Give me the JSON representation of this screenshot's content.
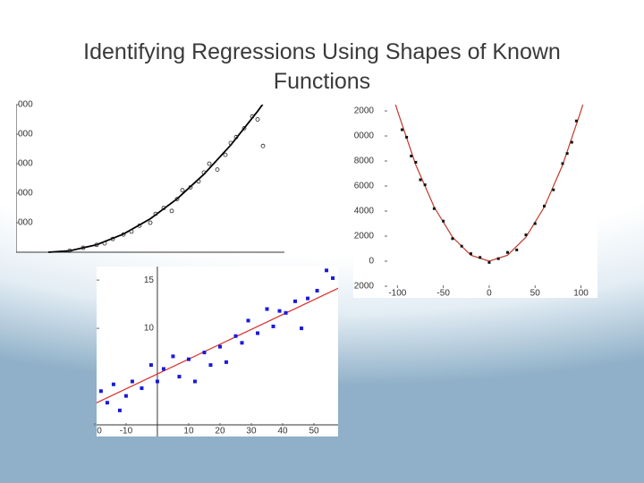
{
  "title": "Identifying Regressions Using Shapes of Known Functions",
  "chart_data": [
    {
      "type": "scatter",
      "marker": "circle-open",
      "color": "#222222",
      "fit_color": "#000000",
      "zero_axes": true,
      "xlim": [
        0,
        10
      ],
      "ylim": [
        0,
        5000
      ],
      "yticks": [
        {
          "value": 1000,
          "label": "000"
        },
        {
          "value": 2000,
          "label": "000"
        },
        {
          "value": 3000,
          "label": "000"
        },
        {
          "value": 4000,
          "label": "000"
        },
        {
          "value": 5000,
          "label": "000"
        }
      ],
      "x": [
        2.0,
        2.5,
        3.0,
        3.3,
        3.6,
        4.0,
        4.3,
        4.6,
        5.0,
        5.2,
        5.5,
        5.8,
        6.0,
        6.2,
        6.5,
        6.8,
        7.0,
        7.2,
        7.5,
        7.8,
        8.0,
        8.2,
        8.5,
        8.8,
        9.0,
        9.2
      ],
      "values": [
        50,
        150,
        250,
        300,
        450,
        600,
        700,
        900,
        1000,
        1300,
        1500,
        1400,
        1800,
        2100,
        2200,
        2400,
        2700,
        3000,
        2800,
        3300,
        3700,
        3900,
        4200,
        4600,
        4500,
        3600
      ],
      "fit_x": [
        1.2,
        2,
        3,
        4,
        5,
        6,
        7,
        8,
        9,
        9.2
      ],
      "fit_values": [
        0,
        50,
        254,
        615,
        1134,
        1809,
        2641,
        3630,
        4776,
        5024
      ]
    },
    {
      "type": "scatter",
      "marker": "square",
      "color": "#111111",
      "fit_color": "#c0392b",
      "zero_axes": false,
      "xlim": [
        -114,
        118
      ],
      "ylim": [
        -2857,
        12430
      ],
      "xticks": [
        -100,
        -50,
        0,
        50,
        100
      ],
      "yticks": [
        {
          "value": -2000,
          "label": "2000"
        },
        0,
        2000,
        4000,
        6000,
        8000,
        {
          "value": 10000,
          "label": "0000"
        },
        {
          "value": 12000,
          "label": "2000"
        }
      ],
      "x": [
        -95,
        -90,
        -85,
        -80,
        -75,
        -70,
        -60,
        -50,
        -40,
        -30,
        -20,
        -10,
        0,
        10,
        20,
        30,
        40,
        50,
        60,
        70,
        80,
        85,
        90,
        95
      ],
      "values": [
        10500,
        9900,
        8400,
        7900,
        6500,
        6100,
        4200,
        3200,
        1800,
        1200,
        600,
        300,
        -100,
        200,
        700,
        900,
        2100,
        3000,
        4400,
        5700,
        7800,
        8600,
        9500,
        11200
      ],
      "fit_x": [
        -105,
        -100,
        -80,
        -60,
        -40,
        -20,
        0,
        20,
        40,
        60,
        80,
        100,
        105
      ],
      "fit_values": [
        13230,
        12000,
        7680,
        4320,
        1920,
        480,
        0,
        480,
        1920,
        4320,
        7680,
        12000,
        13230
      ]
    },
    {
      "type": "scatter",
      "marker": "square",
      "color": "#1a1adb",
      "fit_color": "#d9302b",
      "zero_axes": true,
      "xlim": [
        -19.4,
        57.7
      ],
      "ylim": [
        -1.2,
        16.4
      ],
      "xticks": [
        {
          "value": -20,
          "label": "0"
        },
        -10,
        10,
        20,
        30,
        40,
        50
      ],
      "yticks": [
        10,
        15
      ],
      "x": [
        -18,
        -16,
        -14,
        -12,
        -10,
        -8,
        -5,
        -2,
        0,
        2,
        5,
        7,
        10,
        12,
        15,
        17,
        20,
        22,
        25,
        27,
        29,
        32,
        35,
        37,
        39,
        41,
        44,
        46,
        48,
        51,
        54,
        56
      ],
      "values": [
        3.5,
        2.3,
        4.2,
        1.5,
        3,
        4.5,
        3.8,
        6.2,
        4.5,
        5.8,
        7.1,
        5,
        6.8,
        4.5,
        7.5,
        6.2,
        8.1,
        6.5,
        9.2,
        8.5,
        10.8,
        9.5,
        12,
        10.2,
        11.8,
        11.6,
        12.8,
        10,
        13.1,
        13.9,
        16,
        15.2
      ],
      "fit_x": [
        -20,
        58
      ],
      "fit_values": [
        2.2,
        14.2
      ]
    }
  ]
}
